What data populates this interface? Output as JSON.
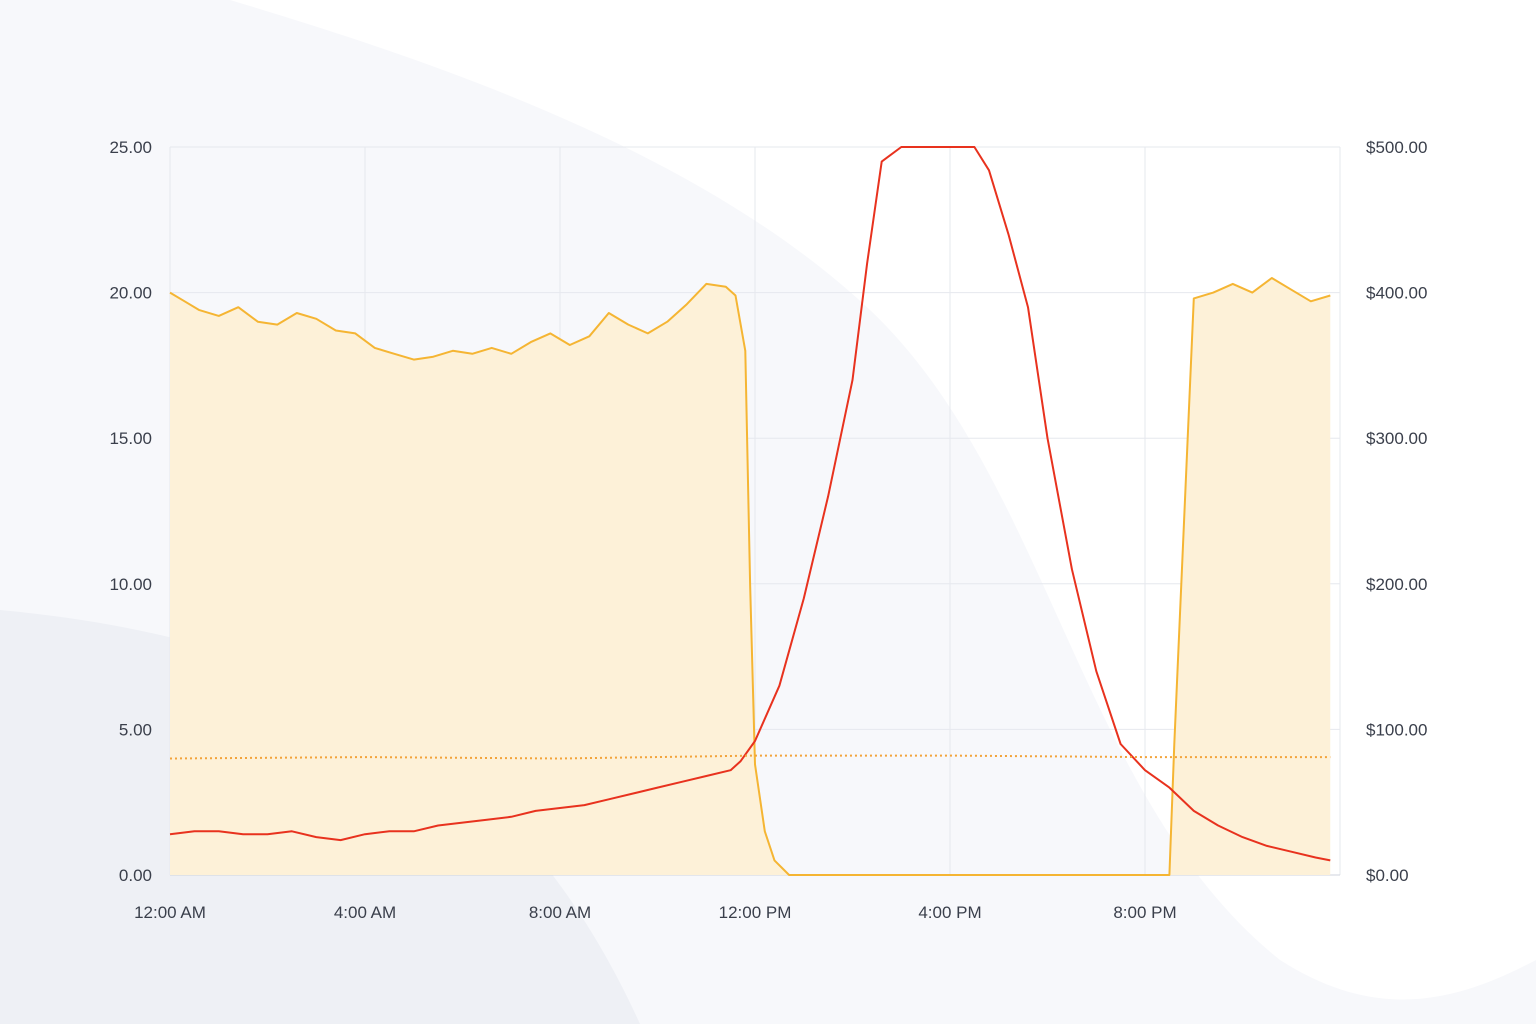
{
  "chart_data": {
    "type": "area",
    "title": "",
    "xlabel": "",
    "ylabel_left": "",
    "ylabel_right": "",
    "x_tick_labels": [
      "12:00 AM",
      "4:00 AM",
      "8:00 AM",
      "12:00 PM",
      "4:00 PM",
      "8:00 PM"
    ],
    "x_range_hours": [
      0,
      24
    ],
    "y_left": {
      "lim": [
        0,
        25
      ],
      "tick_labels": [
        "0.00",
        "5.00",
        "10.00",
        "15.00",
        "20.00",
        "25.00"
      ]
    },
    "y_right": {
      "lim": [
        0,
        500
      ],
      "tick_labels": [
        "$0.00",
        "$100.00",
        "$200.00",
        "$300.00",
        "$400.00",
        "$500.00"
      ]
    },
    "grid": true,
    "legend": "none",
    "colors": {
      "orange": "#f5b533",
      "orange_fill": "#fdf1d8",
      "red": "#e8321e",
      "dotted": "#f2a33a",
      "grid": "#e6e8ee"
    },
    "series": [
      {
        "axis": "left",
        "style": "area",
        "color": "#f5b533",
        "points": [
          [
            0,
            20.0
          ],
          [
            0.3,
            19.7
          ],
          [
            0.6,
            19.4
          ],
          [
            1.0,
            19.2
          ],
          [
            1.4,
            19.5
          ],
          [
            1.8,
            19.0
          ],
          [
            2.2,
            18.9
          ],
          [
            2.6,
            19.3
          ],
          [
            3.0,
            19.1
          ],
          [
            3.4,
            18.7
          ],
          [
            3.8,
            18.6
          ],
          [
            4.2,
            18.1
          ],
          [
            4.6,
            17.9
          ],
          [
            5.0,
            17.7
          ],
          [
            5.4,
            17.8
          ],
          [
            5.8,
            18.0
          ],
          [
            6.2,
            17.9
          ],
          [
            6.6,
            18.1
          ],
          [
            7.0,
            17.9
          ],
          [
            7.4,
            18.3
          ],
          [
            7.8,
            18.6
          ],
          [
            8.2,
            18.2
          ],
          [
            8.6,
            18.5
          ],
          [
            9.0,
            19.3
          ],
          [
            9.4,
            18.9
          ],
          [
            9.8,
            18.6
          ],
          [
            10.2,
            19.0
          ],
          [
            10.6,
            19.6
          ],
          [
            11.0,
            20.3
          ],
          [
            11.4,
            20.2
          ],
          [
            11.6,
            19.9
          ],
          [
            11.8,
            18.0
          ],
          [
            11.9,
            10.0
          ],
          [
            12.0,
            3.8
          ],
          [
            12.2,
            1.5
          ],
          [
            12.4,
            0.5
          ],
          [
            12.7,
            0.0
          ],
          [
            20.5,
            0.0
          ],
          [
            20.6,
            4.5
          ],
          [
            21.0,
            19.8
          ],
          [
            21.4,
            20.0
          ],
          [
            21.8,
            20.3
          ],
          [
            22.2,
            20.0
          ],
          [
            22.6,
            20.5
          ],
          [
            23.0,
            20.1
          ],
          [
            23.4,
            19.7
          ],
          [
            23.8,
            19.9
          ]
        ]
      },
      {
        "axis": "left",
        "style": "line",
        "color": "#e8321e",
        "points": [
          [
            0,
            1.4
          ],
          [
            0.5,
            1.5
          ],
          [
            1.0,
            1.5
          ],
          [
            1.5,
            1.4
          ],
          [
            2.0,
            1.4
          ],
          [
            2.5,
            1.5
          ],
          [
            3.0,
            1.3
          ],
          [
            3.5,
            1.2
          ],
          [
            4.0,
            1.4
          ],
          [
            4.5,
            1.5
          ],
          [
            5.0,
            1.5
          ],
          [
            5.5,
            1.7
          ],
          [
            6.0,
            1.8
          ],
          [
            6.5,
            1.9
          ],
          [
            7.0,
            2.0
          ],
          [
            7.5,
            2.2
          ],
          [
            8.0,
            2.3
          ],
          [
            8.5,
            2.4
          ],
          [
            9.0,
            2.6
          ],
          [
            9.5,
            2.8
          ],
          [
            10.0,
            3.0
          ],
          [
            10.5,
            3.2
          ],
          [
            11.0,
            3.4
          ],
          [
            11.5,
            3.6
          ],
          [
            11.7,
            3.9
          ],
          [
            12.0,
            4.6
          ],
          [
            12.5,
            6.5
          ],
          [
            13.0,
            9.5
          ],
          [
            13.5,
            13.0
          ],
          [
            14.0,
            17.0
          ],
          [
            14.3,
            21.0
          ],
          [
            14.6,
            24.5
          ],
          [
            15.0,
            25.0
          ],
          [
            16.5,
            25.0
          ],
          [
            16.8,
            24.2
          ],
          [
            17.2,
            22.0
          ],
          [
            17.6,
            19.5
          ],
          [
            18.0,
            15.0
          ],
          [
            18.5,
            10.5
          ],
          [
            19.0,
            7.0
          ],
          [
            19.5,
            4.5
          ],
          [
            20.0,
            3.6
          ],
          [
            20.5,
            3.0
          ],
          [
            21.0,
            2.2
          ],
          [
            21.5,
            1.7
          ],
          [
            22.0,
            1.3
          ],
          [
            22.5,
            1.0
          ],
          [
            23.0,
            0.8
          ],
          [
            23.5,
            0.6
          ],
          [
            23.8,
            0.5
          ]
        ]
      },
      {
        "axis": "left",
        "style": "dotted",
        "color": "#f2a33a",
        "points": [
          [
            0,
            4.0
          ],
          [
            4,
            4.05
          ],
          [
            8,
            4.0
          ],
          [
            12,
            4.1
          ],
          [
            16,
            4.1
          ],
          [
            20,
            4.05
          ],
          [
            23.8,
            4.05
          ]
        ]
      }
    ]
  }
}
